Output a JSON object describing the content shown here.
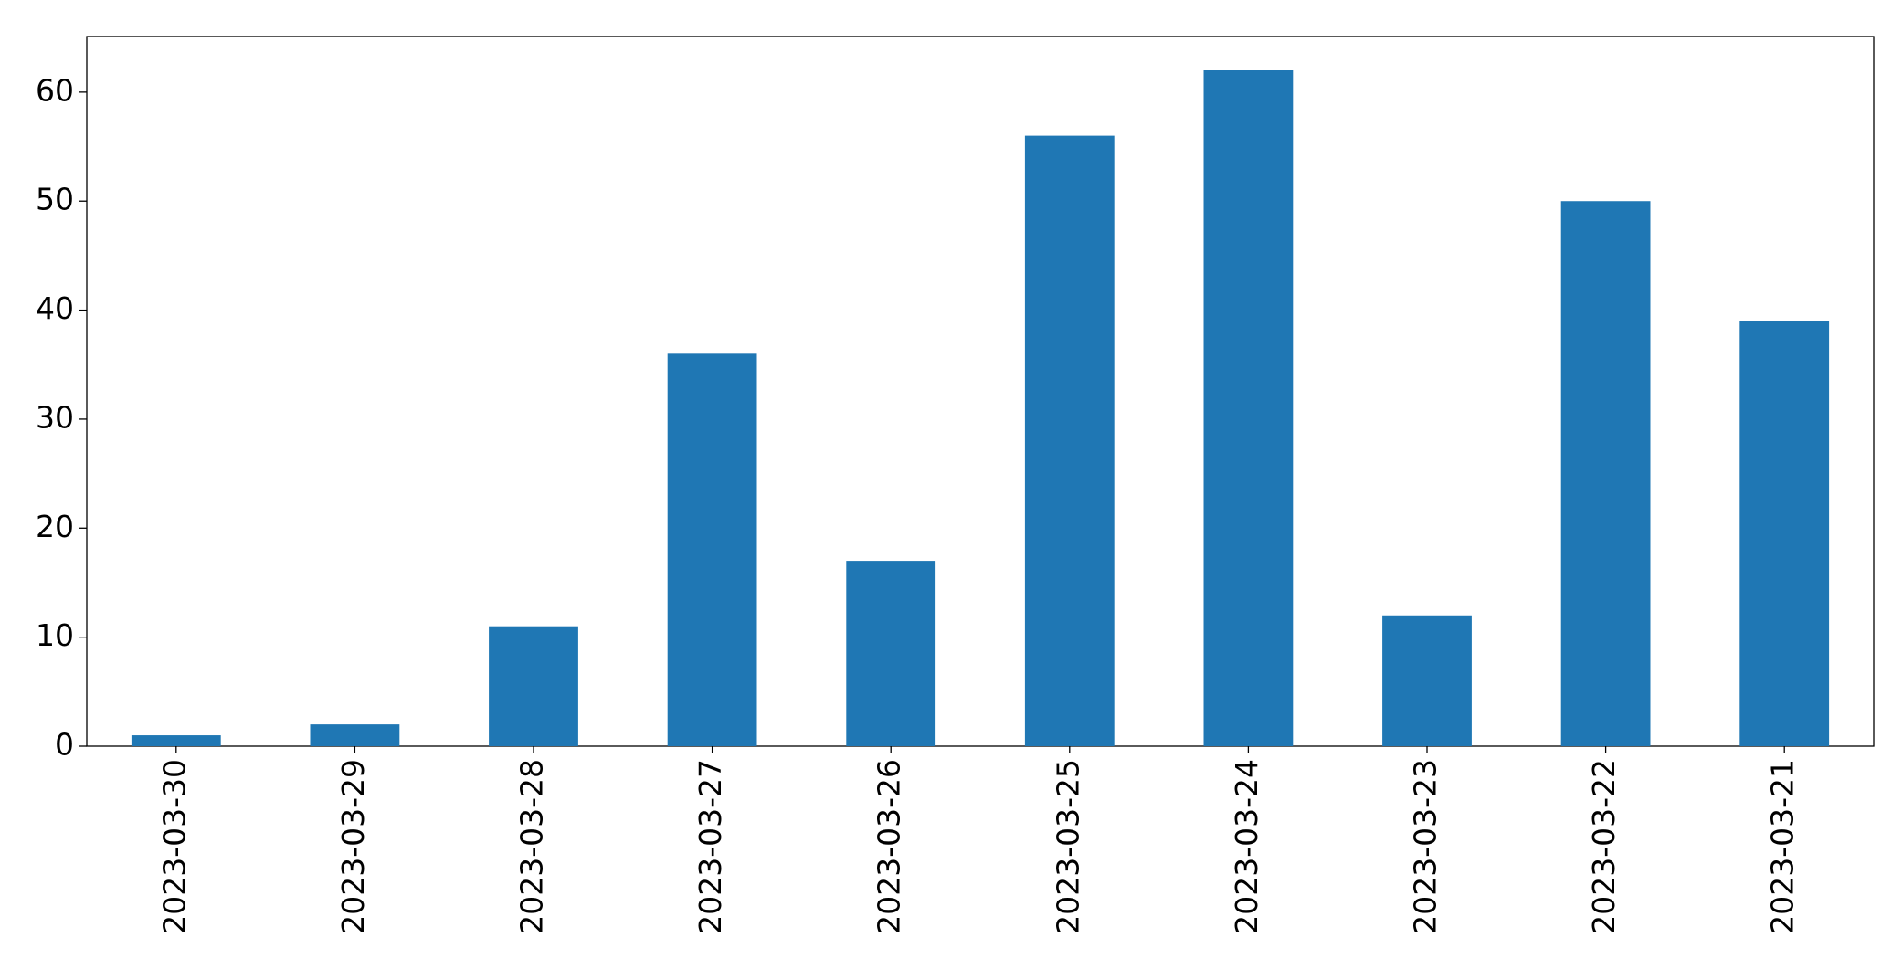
{
  "chart_data": {
    "type": "bar",
    "categories": [
      "2023-03-30",
      "2023-03-29",
      "2023-03-28",
      "2023-03-27",
      "2023-03-26",
      "2023-03-25",
      "2023-03-24",
      "2023-03-23",
      "2023-03-22",
      "2023-03-21"
    ],
    "values": [
      1,
      2,
      11,
      36,
      17,
      56,
      62,
      12,
      50,
      39
    ],
    "color": "#1f77b4",
    "ylim": [
      0,
      65.1
    ],
    "yticks": [
      0,
      10,
      20,
      30,
      40,
      50,
      60
    ],
    "grid": false
  }
}
